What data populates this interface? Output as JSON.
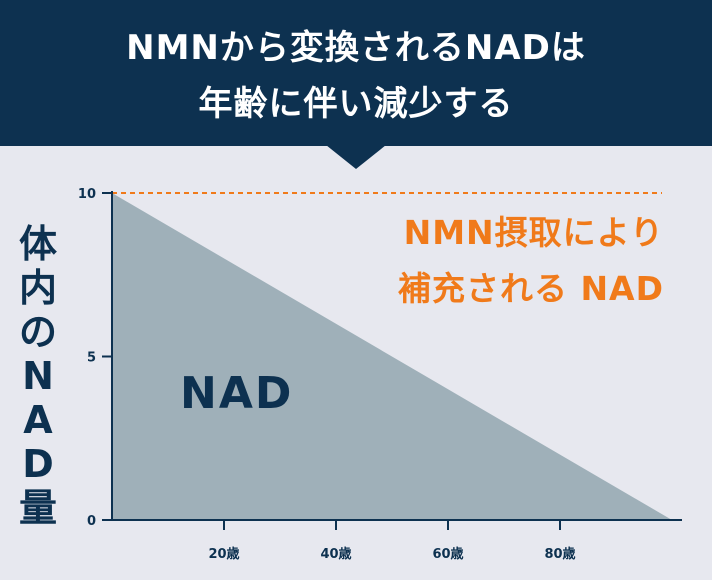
{
  "header": {
    "title_line1": "NMNから変換されるNADは",
    "title_line2": "年齢に伴い減少する"
  },
  "colors": {
    "header_bg": "#0d3150",
    "page_bg": "#e7e8ef",
    "area_fill": "#9fb0b9",
    "reference_line": "#f07a1a",
    "axis": "#0d3150"
  },
  "chart_data": {
    "type": "area",
    "ylabel": "体内のNAD量",
    "x": [
      0,
      100
    ],
    "y": [
      10,
      0
    ],
    "xlim": [
      0,
      100
    ],
    "ylim": [
      0,
      10
    ],
    "x_ticks": [
      20,
      40,
      60,
      80
    ],
    "x_tick_labels": [
      "20歳",
      "40歳",
      "60歳",
      "80歳"
    ],
    "y_ticks": [
      0,
      5,
      10
    ],
    "y_tick_labels": [
      "0",
      "5",
      "10"
    ],
    "reference_line": {
      "y": 10,
      "style": "dashed"
    },
    "annotations": {
      "area_label": "NAD",
      "reference_label_line1": "NMN摂取により",
      "reference_label_line2": "補充される NAD"
    }
  }
}
